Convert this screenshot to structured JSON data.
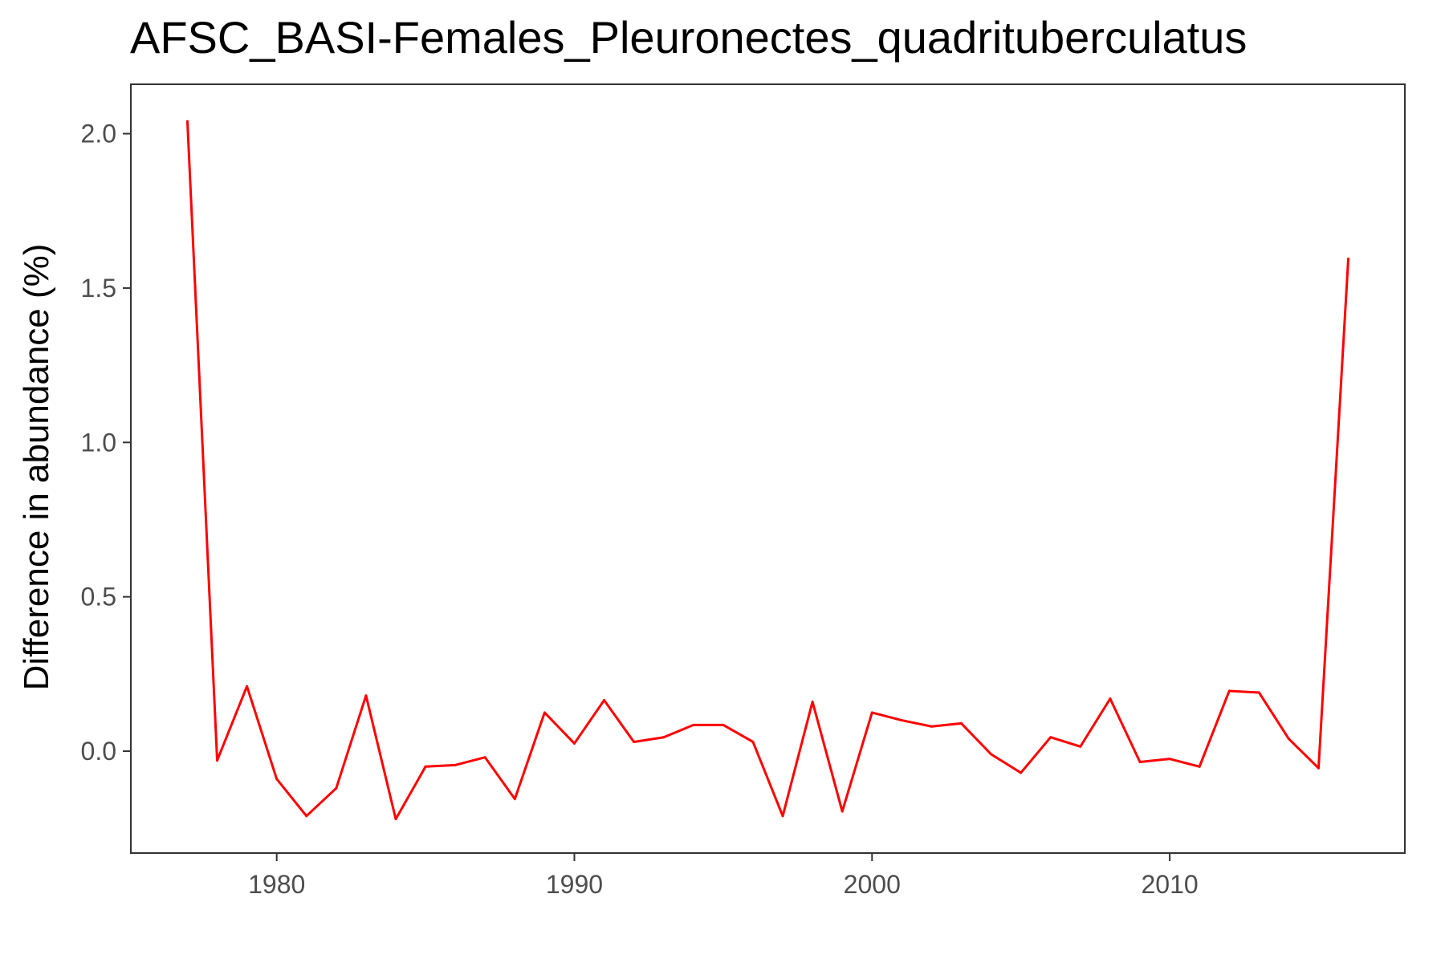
{
  "chart_data": {
    "type": "line",
    "title": "AFSC_BASI-Females_Pleuronectes_quadrituberculatus",
    "xlabel": "",
    "ylabel": "Difference in abundance (%)",
    "xlim": [
      1975.1,
      1917.9
    ],
    "ylim": [
      -0.33,
      2.16
    ],
    "xticks": [
      1980,
      1990,
      2000,
      2010
    ],
    "yticks": [
      0.0,
      0.5,
      1.0,
      1.5,
      2.0
    ],
    "xtick_labels": [
      "1980",
      "1990",
      "2000",
      "2010"
    ],
    "ytick_labels": [
      "0.0",
      "0.5",
      "1.0",
      "1.5",
      "2.0"
    ],
    "grid": false,
    "series": [
      {
        "color": "#ff0000",
        "x": [
          1977,
          1978,
          1979,
          1980,
          1981,
          1982,
          1983,
          1984,
          1985,
          1986,
          1987,
          1988,
          1989,
          1990,
          1991,
          1992,
          1993,
          1994,
          1995,
          1996,
          1997,
          1998,
          1999,
          2000,
          2001,
          2002,
          2003,
          2004,
          2005,
          2006,
          2007,
          2008,
          2009,
          2010,
          2011,
          2012,
          2013,
          2014,
          2015,
          2016
        ],
        "y": [
          2.04,
          -0.03,
          0.21,
          -0.09,
          -0.21,
          -0.12,
          0.18,
          -0.22,
          -0.05,
          -0.045,
          -0.02,
          -0.155,
          0.125,
          0.025,
          0.165,
          0.03,
          0.045,
          0.085,
          0.085,
          0.03,
          -0.21,
          0.16,
          -0.195,
          0.125,
          0.1,
          0.08,
          0.09,
          -0.01,
          -0.07,
          0.045,
          0.015,
          0.17,
          -0.035,
          -0.025,
          -0.05,
          0.195,
          0.19,
          0.04,
          -0.055,
          1.595
        ]
      }
    ]
  }
}
